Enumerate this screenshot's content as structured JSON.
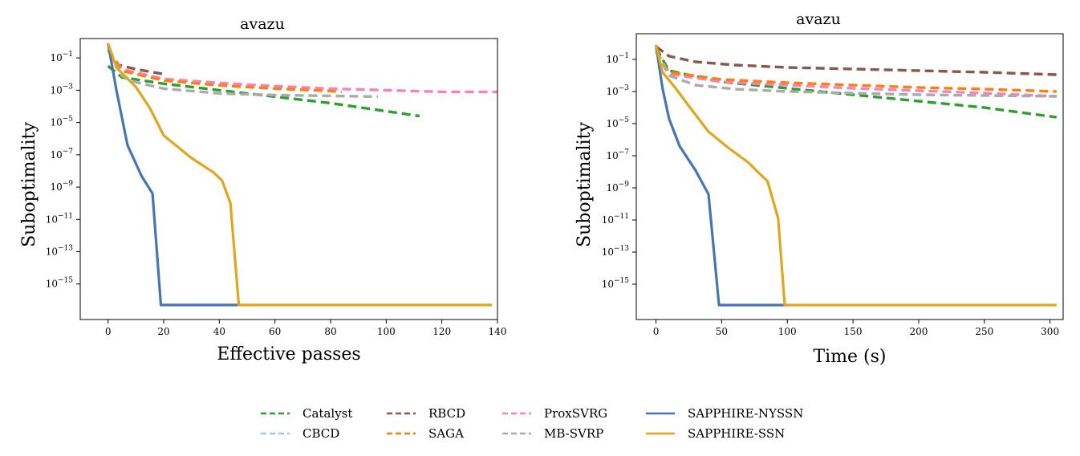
{
  "chart_data": [
    {
      "type": "line",
      "title": "avazu",
      "xlabel": "Effective passes",
      "ylabel": "Suboptimality",
      "xscale": "linear",
      "yscale": "log",
      "xlim": [
        -10,
        140
      ],
      "ylim_log10": [
        -17.2,
        0.2
      ],
      "xticks": [
        0,
        20,
        40,
        60,
        80,
        100,
        120,
        140
      ],
      "xtick_labels": [
        "0",
        "20",
        "40",
        "60",
        "80",
        "100",
        "120",
        "140"
      ],
      "yticks_log10": [
        -1,
        -3,
        -5,
        -7,
        -9,
        -11,
        -13,
        -15
      ],
      "ytick_labels": [
        "10",
        "10",
        "10",
        "10",
        "10",
        "10",
        "10",
        "10"
      ],
      "ytick_exponents": [
        "−1",
        "−3",
        "−5",
        "−7",
        "−9",
        "−11",
        "−13",
        "−15"
      ],
      "grid": false,
      "series": [
        {
          "name": "Catalyst",
          "color": "#2ca02c",
          "dash": "dashed",
          "x": [
            0,
            5,
            20,
            40,
            60,
            80,
            100,
            112
          ],
          "log10y": [
            -1.5,
            -2.2,
            -2.6,
            -3.0,
            -3.4,
            -3.8,
            -4.3,
            -4.6
          ]
        },
        {
          "name": "RBCD",
          "color": "#8c564b",
          "dash": "dashed",
          "x": [
            0,
            3,
            10,
            20
          ],
          "log10y": [
            -0.5,
            -1.4,
            -1.7,
            -2.0
          ]
        },
        {
          "name": "ProxSVRG",
          "color": "#f781bf",
          "dash": "dashed",
          "x": [
            0,
            5,
            20,
            40,
            60,
            80,
            100,
            120,
            140
          ],
          "log10y": [
            -0.5,
            -1.7,
            -2.3,
            -2.55,
            -2.75,
            -2.9,
            -3.0,
            -3.1,
            -3.1
          ]
        },
        {
          "name": "SAGA",
          "color": "#ff7f0e",
          "dash": "dashed",
          "x": [
            0,
            5,
            20,
            40,
            60,
            80,
            84
          ],
          "log10y": [
            -0.5,
            -1.8,
            -2.4,
            -2.7,
            -2.9,
            -3.05,
            -3.1
          ]
        },
        {
          "name": "MB-SVRP",
          "color": "#aaaaaa",
          "dash": "dashed",
          "x": [
            0,
            5,
            10,
            20,
            40,
            60,
            80,
            97
          ],
          "log10y": [
            -0.5,
            -2.1,
            -2.5,
            -2.9,
            -3.2,
            -3.3,
            -3.35,
            -3.4
          ]
        },
        {
          "name": "SAPPHIRE-NYSSN",
          "color": "#4575b4",
          "dash": "solid",
          "x": [
            0,
            3,
            7,
            12,
            16,
            19,
            30,
            47
          ],
          "log10y": [
            -0.1,
            -3.0,
            -6.4,
            -8.3,
            -9.4,
            -16.3,
            -16.3,
            -16.3
          ]
        },
        {
          "name": "SAPPHIRE-SSN",
          "color": "#e2a61c",
          "dash": "solid",
          "x": [
            0,
            3,
            10,
            15,
            20,
            30,
            38,
            41,
            44,
            47,
            70,
            100,
            138
          ],
          "log10y": [
            -0.1,
            -1.6,
            -2.8,
            -4.1,
            -5.8,
            -7.2,
            -8.1,
            -8.6,
            -10.0,
            -16.3,
            -16.3,
            -16.3,
            -16.3
          ]
        }
      ]
    },
    {
      "type": "line",
      "title": "avazu",
      "xlabel": "Time (s)",
      "ylabel": "Suboptimality",
      "xscale": "linear",
      "yscale": "log",
      "xlim": [
        -15,
        310
      ],
      "ylim_log10": [
        -17.2,
        0.6
      ],
      "xticks": [
        0,
        50,
        100,
        150,
        200,
        250,
        300
      ],
      "xtick_labels": [
        "0",
        "50",
        "100",
        "150",
        "200",
        "250",
        "300"
      ],
      "yticks_log10": [
        -1,
        -3,
        -5,
        -7,
        -9,
        -11,
        -13,
        -15
      ],
      "ytick_labels": [
        "10",
        "10",
        "10",
        "10",
        "10",
        "10",
        "10",
        "10"
      ],
      "ytick_exponents": [
        "−1",
        "−3",
        "−5",
        "−7",
        "−9",
        "−11",
        "−13",
        "−15"
      ],
      "grid": false,
      "series": [
        {
          "name": "Catalyst",
          "color": "#2ca02c",
          "dash": "dashed",
          "x": [
            0,
            10,
            50,
            100,
            150,
            200,
            250,
            305
          ],
          "log10y": [
            -0.3,
            -1.7,
            -2.4,
            -2.8,
            -3.2,
            -3.6,
            -4.0,
            -4.6
          ]
        },
        {
          "name": "RBCD",
          "color": "#8c564b",
          "dash": "dashed",
          "x": [
            0,
            10,
            30,
            60,
            100,
            150,
            200,
            250,
            305
          ],
          "log10y": [
            -0.2,
            -0.8,
            -1.15,
            -1.35,
            -1.5,
            -1.6,
            -1.7,
            -1.8,
            -1.95
          ]
        },
        {
          "name": "ProxSVRG",
          "color": "#f781bf",
          "dash": "dashed",
          "x": [
            0,
            10,
            50,
            100,
            150,
            200,
            250,
            305
          ],
          "log10y": [
            -0.5,
            -1.9,
            -2.4,
            -2.6,
            -2.8,
            -2.95,
            -3.1,
            -3.3
          ]
        },
        {
          "name": "SAGA",
          "color": "#ff7f0e",
          "dash": "dashed",
          "x": [
            0,
            10,
            50,
            100,
            150,
            200,
            250,
            305
          ],
          "log10y": [
            -0.5,
            -1.8,
            -2.25,
            -2.45,
            -2.6,
            -2.75,
            -2.85,
            -3.0
          ]
        },
        {
          "name": "MB-SVRP",
          "color": "#aaaaaa",
          "dash": "dashed",
          "x": [
            0,
            10,
            30,
            60,
            100,
            150,
            200,
            250,
            305
          ],
          "log10y": [
            -0.5,
            -2.0,
            -2.6,
            -2.85,
            -3.0,
            -3.1,
            -3.2,
            -3.25,
            -3.3
          ]
        },
        {
          "name": "SAPPHIRE-NYSSN",
          "color": "#4575b4",
          "dash": "solid",
          "x": [
            0,
            5,
            10,
            18,
            30,
            40,
            48,
            70,
            100
          ],
          "log10y": [
            -0.1,
            -2.8,
            -4.7,
            -6.4,
            -7.9,
            -9.4,
            -16.3,
            -16.3,
            -16.3
          ]
        },
        {
          "name": "SAPPHIRE-SSN",
          "color": "#e2a61c",
          "dash": "solid",
          "x": [
            0,
            5,
            15,
            25,
            40,
            55,
            70,
            85,
            93,
            98,
            150,
            200,
            305
          ],
          "log10y": [
            -0.1,
            -1.8,
            -2.8,
            -3.9,
            -5.5,
            -6.5,
            -7.4,
            -8.6,
            -10.9,
            -16.3,
            -16.3,
            -16.3,
            -16.3
          ]
        }
      ]
    }
  ],
  "legend": {
    "items": [
      {
        "label": "Catalyst",
        "color": "#2ca02c",
        "dash": "dashed"
      },
      {
        "label": "CBCD",
        "color": "#9ecae1",
        "dash": "dashed"
      },
      {
        "label": "RBCD",
        "color": "#8c564b",
        "dash": "dashed"
      },
      {
        "label": "SAGA",
        "color": "#ff7f0e",
        "dash": "dashed"
      },
      {
        "label": "ProxSVRG",
        "color": "#f781bf",
        "dash": "dashed"
      },
      {
        "label": "MB-SVRP",
        "color": "#aaaaaa",
        "dash": "dashed"
      },
      {
        "label": "SAPPHIRE-NYSSN",
        "color": "#4575b4",
        "dash": "solid"
      },
      {
        "label": "SAPPHIRE-SSN",
        "color": "#e2a61c",
        "dash": "solid"
      }
    ]
  }
}
